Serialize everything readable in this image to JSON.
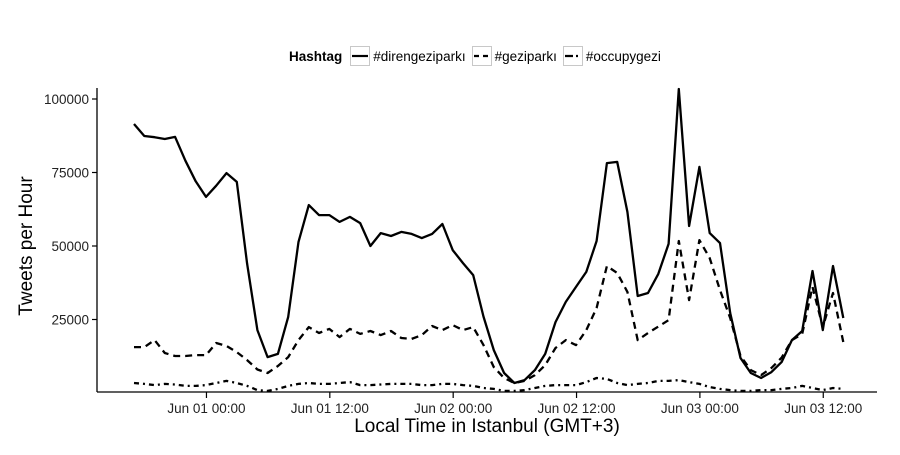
{
  "chart_data": {
    "type": "line",
    "title": "",
    "xlabel": "Local Time in Istanbul (GMT+3)",
    "ylabel": "Tweets per Hour",
    "ylim": [
      0,
      100000
    ],
    "yticks": [
      25000,
      50000,
      75000,
      100000
    ],
    "ytick_labels": [
      "25000",
      "50000",
      "75000",
      "100000"
    ],
    "x_start": "May 31 17:00",
    "x_step": "1 hour",
    "x_count": 70,
    "xticks": [
      {
        "index": 7,
        "label": "Jun 01 00:00"
      },
      {
        "index": 19,
        "label": "Jun 01 12:00"
      },
      {
        "index": 31,
        "label": "Jun 02 00:00"
      },
      {
        "index": 43,
        "label": "Jun 02 12:00"
      },
      {
        "index": 55,
        "label": "Jun 03 00:00"
      },
      {
        "index": 67,
        "label": "Jun 03 12:00"
      }
    ],
    "grid": false,
    "legend_position": "top",
    "legend_title": "Hashtag",
    "series": [
      {
        "name": "#direngeziparkı",
        "dash": "solid",
        "values": [
          91500,
          87400,
          87000,
          86400,
          87100,
          79000,
          72000,
          66700,
          70500,
          74800,
          71800,
          44000,
          21400,
          12200,
          13300,
          25900,
          51400,
          63900,
          60500,
          60500,
          58200,
          59900,
          57800,
          50000,
          54400,
          53400,
          54800,
          54100,
          52700,
          54100,
          57500,
          48600,
          44200,
          40100,
          26000,
          14600,
          6800,
          3400,
          4400,
          7800,
          13300,
          24100,
          31000,
          36100,
          41200,
          51700,
          78200,
          78600,
          61600,
          33000,
          34000,
          40500,
          50700,
          103400,
          56800,
          76900,
          54400,
          51000,
          27200,
          11900,
          6800,
          5100,
          7100,
          10500,
          18000,
          21100,
          41500,
          21400,
          43200,
          25500
        ]
      },
      {
        "name": "#geziparkı",
        "dash": "dashed",
        "values": [
          15600,
          15600,
          18000,
          13600,
          12600,
          12600,
          12900,
          12900,
          17000,
          16000,
          13900,
          11200,
          8000,
          6800,
          9200,
          12200,
          18000,
          22400,
          20400,
          21800,
          19000,
          21800,
          20100,
          21100,
          19700,
          21100,
          18700,
          18400,
          19700,
          22800,
          21400,
          23100,
          21400,
          22400,
          16300,
          8800,
          5100,
          3400,
          4100,
          6100,
          9500,
          15300,
          18000,
          16300,
          21400,
          28900,
          43200,
          40800,
          34400,
          18000,
          20400,
          22600,
          24800,
          51700,
          31600,
          52000,
          45900,
          35000,
          25500,
          12600,
          7800,
          6100,
          8500,
          12000,
          18000,
          20100,
          36100,
          22400,
          34000,
          17300
        ]
      },
      {
        "name": "#occupygezi",
        "dash": "dotdash",
        "values": [
          3400,
          3100,
          2700,
          3100,
          2900,
          2400,
          2400,
          2700,
          3400,
          4100,
          3400,
          2400,
          1000,
          700,
          1400,
          2400,
          3100,
          3400,
          3100,
          3100,
          3400,
          3700,
          2700,
          2700,
          2900,
          3100,
          3100,
          3100,
          2700,
          2700,
          3100,
          3100,
          2700,
          2400,
          1700,
          1400,
          700,
          700,
          1000,
          1700,
          2400,
          2700,
          2700,
          2700,
          3700,
          5100,
          4800,
          3400,
          2700,
          3100,
          3400,
          4100,
          4100,
          4400,
          3700,
          3100,
          2000,
          1400,
          1000,
          700,
          700,
          1000,
          1000,
          1400,
          1700,
          2400,
          1700,
          1000,
          1700,
          1400
        ]
      }
    ]
  },
  "legend": {
    "title": "Hashtag",
    "items": [
      {
        "label": "#direngeziparkı",
        "dash": "solid"
      },
      {
        "label": "#geziparkı",
        "dash": "dashed"
      },
      {
        "label": "#occupygezi",
        "dash": "dotdash"
      }
    ]
  },
  "axes": {
    "xlabel": "Local Time in Istanbul (GMT+3)",
    "ylabel": "Tweets per Hour"
  },
  "colors": {
    "line": "#000000",
    "axis": "#000000",
    "legend_key_border": "#c8c8c8",
    "background": "#ffffff"
  }
}
